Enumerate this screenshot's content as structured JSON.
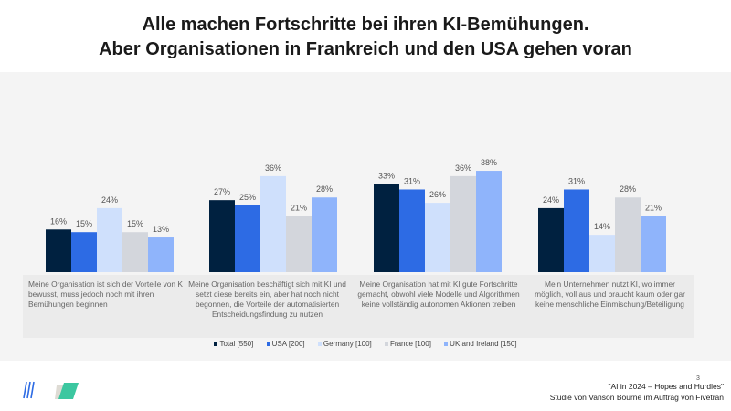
{
  "title_line1": "Alle machen Fortschritte bei ihren KI-Bemühungen.",
  "title_line2": "Aber Organisationen in Frankreich und den USA gehen voran",
  "chart_data": {
    "type": "bar",
    "categories": [
      "Meine Organisation ist sich der Vorteile von KI bewusst, muss jedoch noch mit ihren Bemühungen beginnen",
      "Meine Organisation beschäftigt sich mit KI und setzt diese bereits ein, aber hat noch nicht begonnen, die Vorteile der automatisierten Entscheidungsfindung zu nutzen",
      "Meine Organisation hat mit KI gute Fortschritte gemacht, obwohl viele Modelle und Algorithmen keine vollständig autonomen Aktionen treiben",
      "Mein Unternehmen nutzt KI, wo immer möglich, voll aus und braucht kaum oder gar keine menschliche Einmischung/Beteiligung"
    ],
    "series": [
      {
        "name": "Total [550]",
        "color": "#002140",
        "values": [
          16,
          27,
          33,
          24
        ]
      },
      {
        "name": "USA [200]",
        "color": "#2d6be4",
        "values": [
          15,
          25,
          31,
          31
        ]
      },
      {
        "name": "Germany [100]",
        "color": "#cfe0fc",
        "values": [
          24,
          36,
          26,
          14
        ]
      },
      {
        "name": "France [100]",
        "color": "#d3d6dc",
        "values": [
          15,
          21,
          36,
          28
        ]
      },
      {
        "name": "UK and Ireland [150]",
        "color": "#8fb4fb",
        "values": [
          13,
          28,
          38,
          21
        ]
      }
    ],
    "value_format": "%",
    "ylim": [
      0,
      40
    ],
    "grid": false,
    "legend": "bottom"
  },
  "footer": {
    "line1": "\"AI in 2024 – Hopes and Hurdles\"",
    "line2": "Studie von Vanson Bourne im Auftrag von Fivetran",
    "page_number": "3"
  }
}
